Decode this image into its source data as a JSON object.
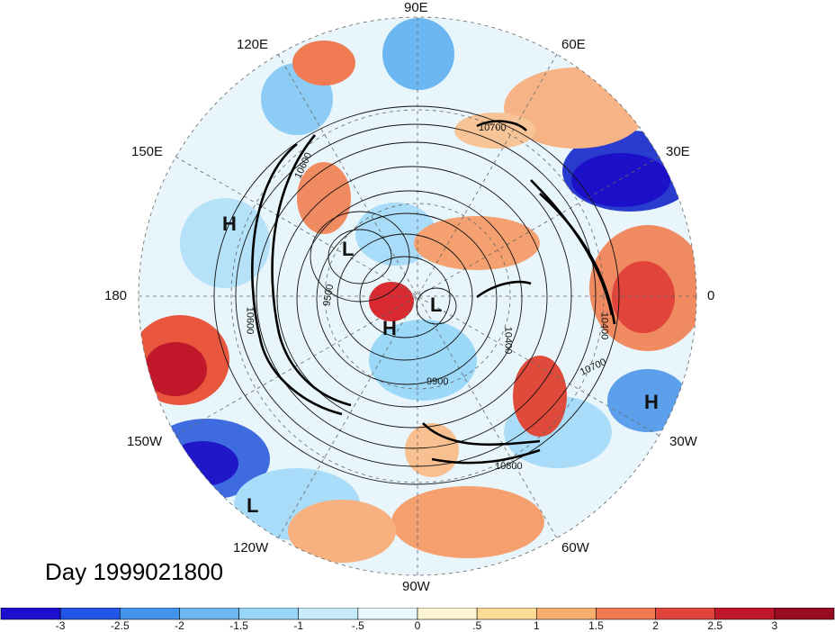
{
  "map": {
    "projection": "north-polar-stereographic",
    "timestamp_label": "Day 1999021800",
    "longitude_labels": {
      "e90": "90E",
      "e60": "60E",
      "e30": "30E",
      "lon0": "0",
      "w30": "30W",
      "w60": "60W",
      "w90": "90W",
      "w120": "120W",
      "w150": "150W",
      "lon180": "180",
      "e150": "150E",
      "e120": "120E"
    },
    "contour_labels": [
      "10700",
      "10600",
      "10400",
      "10700",
      "10800",
      "9900",
      "9500",
      "10400",
      "10600"
    ],
    "pressure_centers": [
      "H",
      "H",
      "H",
      "L",
      "L",
      "L"
    ]
  },
  "colorbar": {
    "tick_labels": [
      "-3",
      "-2.5",
      "-2",
      "-1.5",
      "-1",
      "-.5",
      "0",
      ".5",
      "1",
      "1.5",
      "2",
      "2.5",
      "3"
    ],
    "colors": [
      "#1c0fd0",
      "#2255e6",
      "#4494ee",
      "#6cb6f2",
      "#98d6f8",
      "#c6ecfb",
      "#e8f8fc",
      "#fdf5d2",
      "#fbdb96",
      "#f8ae6e",
      "#f07a52",
      "#e0443a",
      "#c0182a",
      "#980c22"
    ]
  }
}
